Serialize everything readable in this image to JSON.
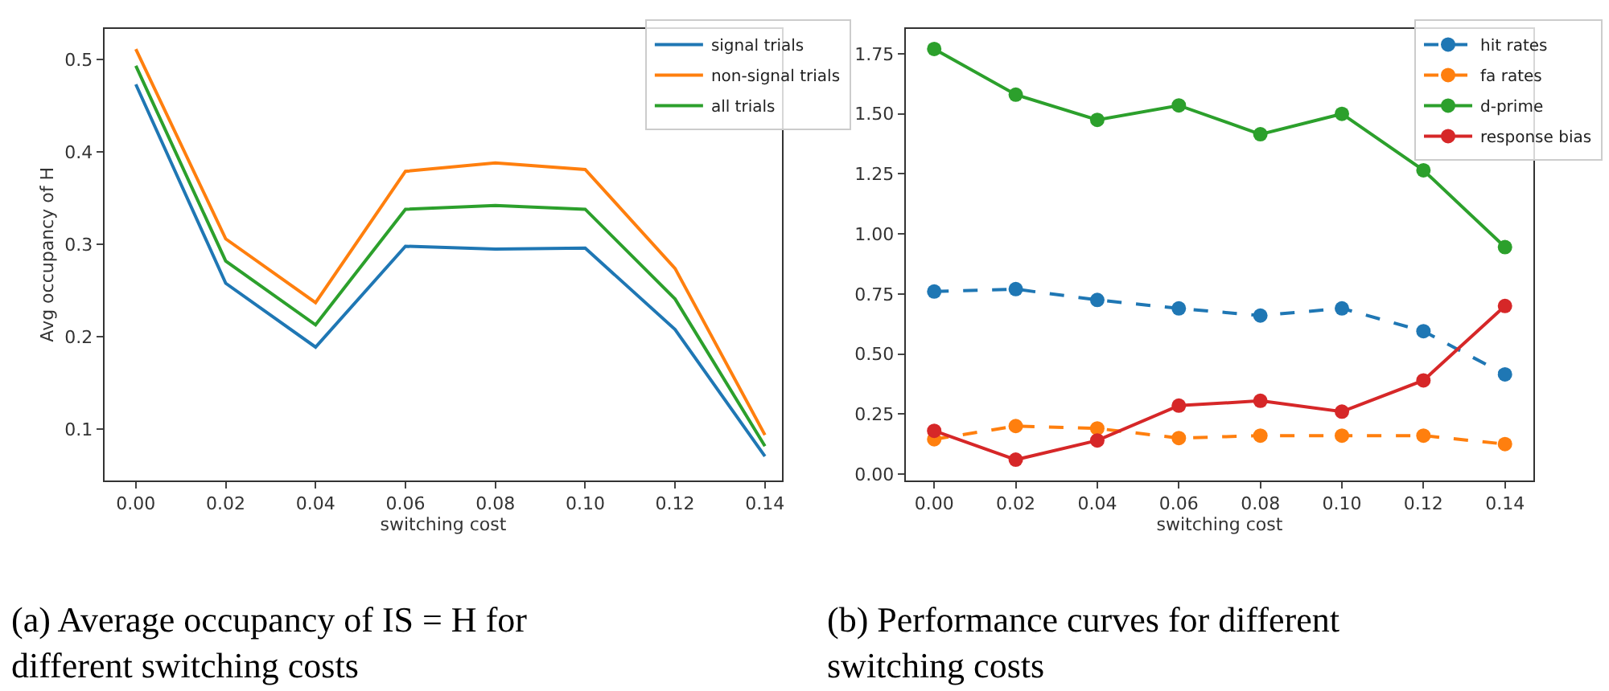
{
  "chart_data": [
    {
      "type": "line",
      "xlabel": "switching cost",
      "ylabel": "Avg occupancy of H",
      "x": [
        0.0,
        0.02,
        0.04,
        0.06,
        0.08,
        0.1,
        0.12,
        0.14
      ],
      "series": [
        {
          "name": "signal trials",
          "color": "#1f77b4",
          "values": [
            0.473,
            0.258,
            0.189,
            0.298,
            0.295,
            0.296,
            0.208,
            0.071
          ]
        },
        {
          "name": "non-signal trials",
          "color": "#ff7f0e",
          "values": [
            0.511,
            0.306,
            0.237,
            0.379,
            0.388,
            0.381,
            0.274,
            0.094
          ]
        },
        {
          "name": "all trials",
          "color": "#2ca02c",
          "values": [
            0.493,
            0.282,
            0.213,
            0.338,
            0.342,
            0.338,
            0.241,
            0.082
          ]
        }
      ],
      "xlim": [
        -0.007,
        0.1438
      ],
      "ylim": [
        0.045,
        0.533
      ],
      "xticks": [
        {
          "value": 0.0,
          "label": "0.00"
        },
        {
          "value": 0.02,
          "label": "0.02"
        },
        {
          "value": 0.04,
          "label": "0.04"
        },
        {
          "value": 0.06,
          "label": "0.06"
        },
        {
          "value": 0.08,
          "label": "0.08"
        },
        {
          "value": 0.1,
          "label": "0.10"
        },
        {
          "value": 0.12,
          "label": "0.12"
        },
        {
          "value": 0.14,
          "label": "0.14"
        }
      ],
      "yticks": [
        0.1,
        0.2,
        0.3,
        0.4,
        0.5
      ],
      "legend": "top right",
      "annotations": [
        "(a) Average occupancy of IS = H for different switching costs"
      ]
    },
    {
      "type": "line",
      "xlabel": "switching cost",
      "marker": "circle",
      "x": [
        0.0,
        0.02,
        0.04,
        0.06,
        0.08,
        0.1,
        0.12,
        0.14
      ],
      "series": [
        {
          "name": "hit rates",
          "color": "#1f77b4",
          "line_style": "dashed",
          "values": [
            0.76,
            0.77,
            0.725,
            0.69,
            0.66,
            0.69,
            0.595,
            0.415
          ]
        },
        {
          "name": "fa rates",
          "color": "#ff7f0e",
          "line_style": "dashed",
          "values": [
            0.145,
            0.2,
            0.19,
            0.15,
            0.16,
            0.16,
            0.16,
            0.125
          ]
        },
        {
          "name": "d-prime",
          "color": "#2ca02c",
          "line_style": "solid",
          "values": [
            1.77,
            1.58,
            1.475,
            1.535,
            1.415,
            1.5,
            1.265,
            0.945
          ]
        },
        {
          "name": "response bias",
          "color": "#d62728",
          "line_style": "solid",
          "values": [
            0.18,
            0.06,
            0.14,
            0.285,
            0.305,
            0.26,
            0.39,
            0.7
          ]
        }
      ],
      "xlim": [
        -0.007,
        0.147
      ],
      "ylim": [
        -0.026,
        1.854
      ],
      "xticks": [
        {
          "value": 0.0,
          "label": "0.00"
        },
        {
          "value": 0.02,
          "label": "0.02"
        },
        {
          "value": 0.04,
          "label": "0.04"
        },
        {
          "value": 0.06,
          "label": "0.06"
        },
        {
          "value": 0.08,
          "label": "0.08"
        },
        {
          "value": 0.1,
          "label": "0.10"
        },
        {
          "value": 0.12,
          "label": "0.12"
        },
        {
          "value": 0.14,
          "label": "0.14"
        }
      ],
      "yticks": [
        {
          "value": 0.0,
          "label": "0.00"
        },
        {
          "value": 0.25,
          "label": "0.25"
        },
        {
          "value": 0.5,
          "label": "0.50"
        },
        {
          "value": 0.75,
          "label": "0.75"
        },
        {
          "value": 1.0,
          "label": "1.00"
        },
        {
          "value": 1.25,
          "label": "1.25"
        },
        {
          "value": 1.5,
          "label": "1.50"
        },
        {
          "value": 1.75,
          "label": "1.75"
        }
      ],
      "legend": "top right",
      "annotations": [
        "(b) Performance curves for different switching costs"
      ]
    }
  ]
}
